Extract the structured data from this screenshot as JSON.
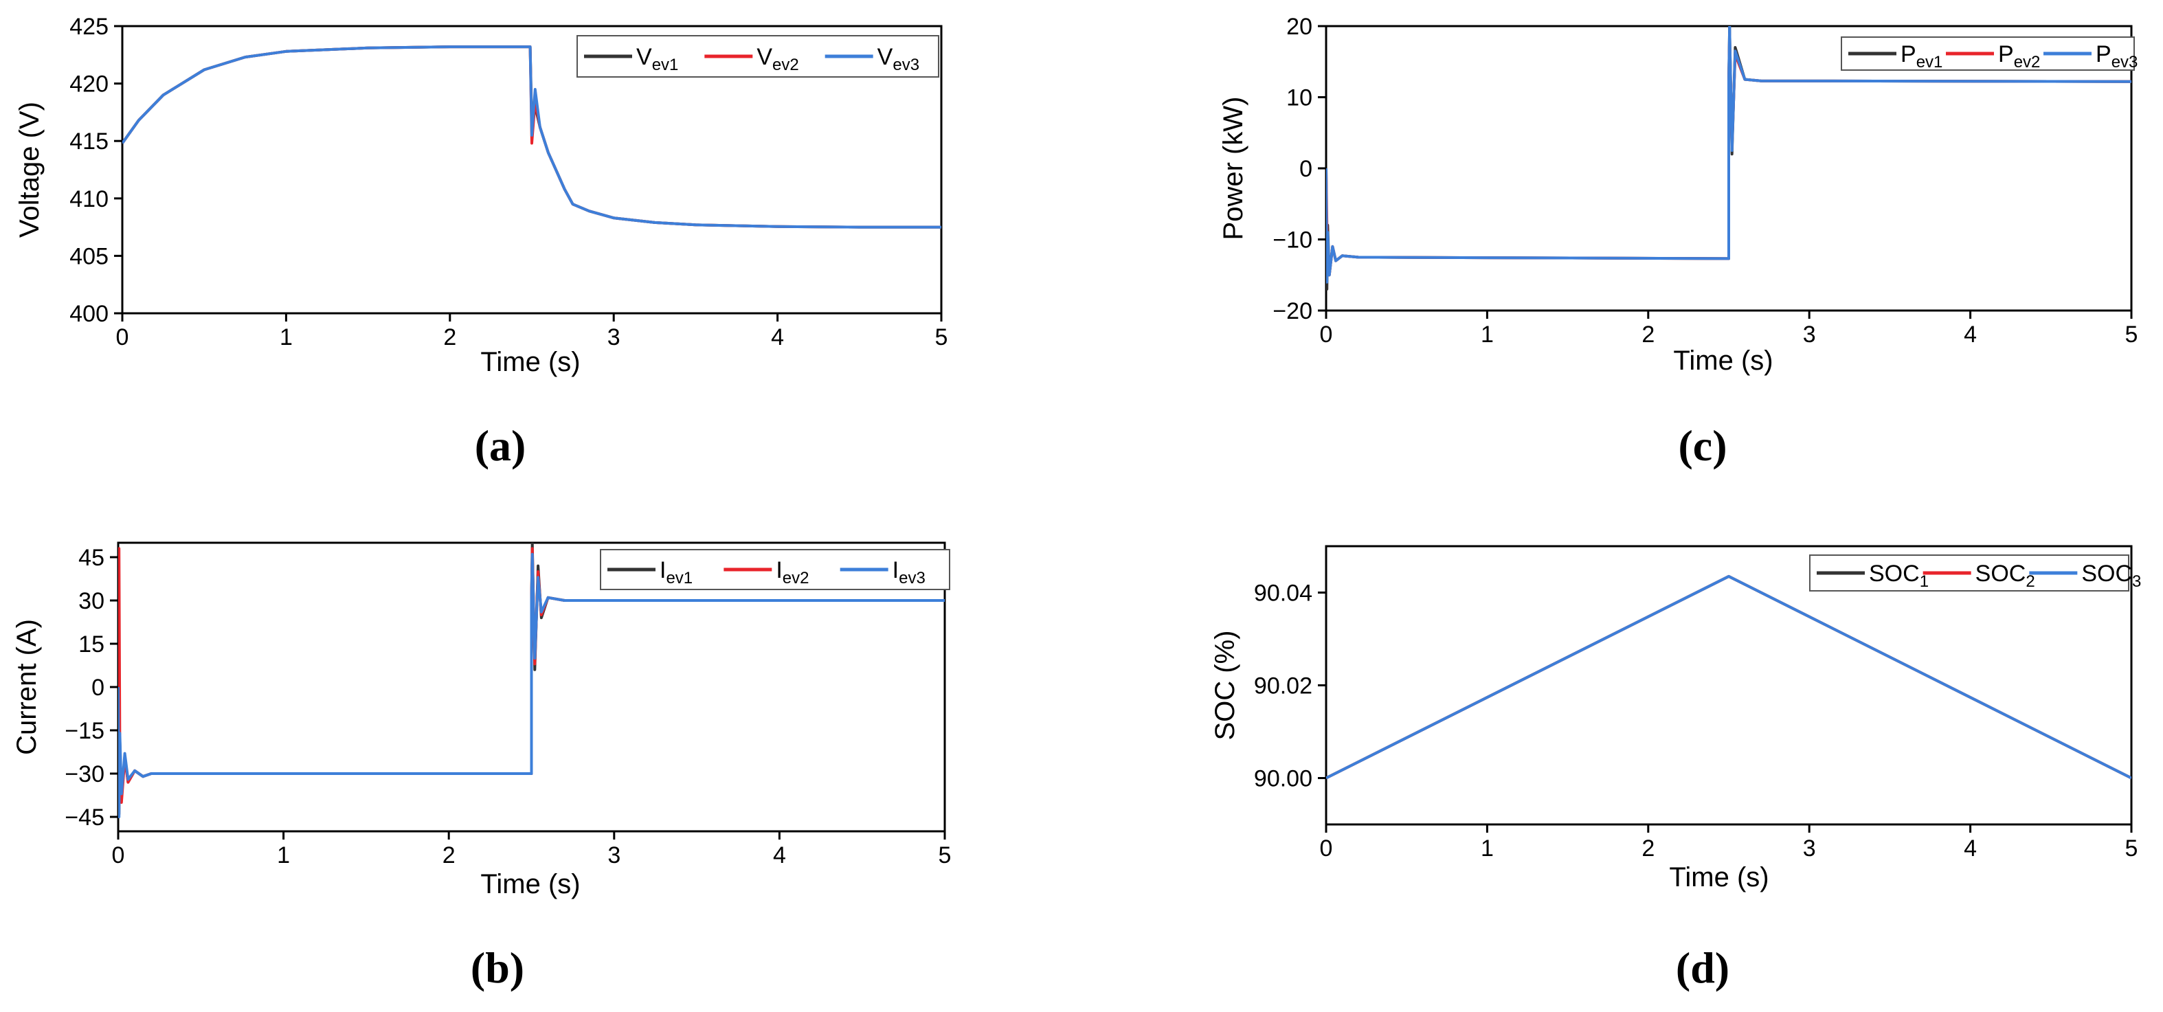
{
  "figure": {
    "title": ""
  },
  "chart_data": [
    {
      "id": "a",
      "panel_label": "(a)",
      "type": "line",
      "xlabel": "Time (s)",
      "ylabel": "Voltage (V)",
      "xlim": [
        0,
        5
      ],
      "ylim": [
        400,
        425
      ],
      "x_ticks": [
        0,
        1,
        2,
        3,
        4,
        5
      ],
      "y_ticks": [
        400,
        405,
        410,
        415,
        420,
        425
      ],
      "legend_position": "top-right",
      "series": [
        {
          "name": "V",
          "sub": "ev1",
          "color": "#333333",
          "x": [
            0,
            0.1,
            0.25,
            0.5,
            0.75,
            1.0,
            1.5,
            2.0,
            2.49,
            2.5,
            2.52,
            2.55,
            2.6,
            2.7,
            2.75,
            2.85,
            3.0,
            3.25,
            3.5,
            4.0,
            4.5,
            5.0
          ],
          "y": [
            414.8,
            416.8,
            419.0,
            421.2,
            422.3,
            422.8,
            423.1,
            423.2,
            423.2,
            416.5,
            418.0,
            416.2,
            414.0,
            410.8,
            409.5,
            408.9,
            408.3,
            407.9,
            407.7,
            407.55,
            407.5,
            407.5
          ]
        },
        {
          "name": "V",
          "sub": "ev2",
          "color": "#e8242b",
          "x": [
            0,
            0.1,
            0.25,
            0.5,
            0.75,
            1.0,
            1.5,
            2.0,
            2.49,
            2.5,
            2.52,
            2.55,
            2.6,
            2.7,
            2.75,
            2.85,
            3.0,
            3.25,
            3.5,
            4.0,
            4.5,
            5.0
          ],
          "y": [
            414.8,
            416.8,
            419.0,
            421.2,
            422.3,
            422.8,
            423.1,
            423.2,
            423.2,
            414.8,
            418.5,
            416.2,
            414.0,
            410.8,
            409.5,
            408.9,
            408.3,
            407.9,
            407.7,
            407.55,
            407.5,
            407.5
          ]
        },
        {
          "name": "V",
          "sub": "ev3",
          "color": "#3d7fd9",
          "x": [
            0,
            0.1,
            0.25,
            0.5,
            0.75,
            1.0,
            1.5,
            2.0,
            2.49,
            2.5,
            2.52,
            2.55,
            2.6,
            2.7,
            2.75,
            2.85,
            3.0,
            3.25,
            3.5,
            4.0,
            4.5,
            5.0
          ],
          "y": [
            414.8,
            416.8,
            419.0,
            421.2,
            422.3,
            422.8,
            423.1,
            423.2,
            423.2,
            415.5,
            419.5,
            416.2,
            414.0,
            410.8,
            409.5,
            408.9,
            408.3,
            407.9,
            407.7,
            407.55,
            407.5,
            407.5
          ]
        }
      ]
    },
    {
      "id": "b",
      "panel_label": "(b)",
      "type": "line",
      "xlabel": "Time (s)",
      "ylabel": "Current (A)",
      "xlim": [
        0,
        5
      ],
      "ylim": [
        -50,
        50
      ],
      "x_ticks": [
        0,
        1,
        2,
        3,
        4,
        5
      ],
      "y_ticks": [
        -45,
        -30,
        -15,
        0,
        15,
        30,
        45
      ],
      "legend_position": "top-right",
      "series": [
        {
          "name": "I",
          "sub": "ev1",
          "color": "#333333",
          "x": [
            0,
            0.005,
            0.01,
            0.02,
            0.04,
            0.06,
            0.1,
            0.15,
            0.2,
            2.5,
            2.5,
            2.505,
            2.52,
            2.54,
            2.56,
            2.6,
            2.7,
            5.0
          ],
          "y": [
            0,
            -44,
            -18,
            -38,
            -24,
            -33,
            -29,
            -31,
            -30,
            -30,
            30,
            50,
            6,
            42,
            24,
            31,
            30,
            30
          ]
        },
        {
          "name": "I",
          "sub": "ev2",
          "color": "#e8242b",
          "x": [
            0,
            0.005,
            0.01,
            0.02,
            0.04,
            0.06,
            0.1,
            0.15,
            0.2,
            2.5,
            2.5,
            2.505,
            2.52,
            2.54,
            2.56,
            2.6,
            2.7,
            5.0
          ],
          "y": [
            0,
            48,
            -20,
            -40,
            -25,
            -33,
            -29,
            -31,
            -30,
            -30,
            30,
            48,
            8,
            40,
            25,
            31,
            30,
            30
          ]
        },
        {
          "name": "I",
          "sub": "ev3",
          "color": "#3d7fd9",
          "x": [
            0,
            0.005,
            0.01,
            0.02,
            0.04,
            0.06,
            0.1,
            0.15,
            0.2,
            2.5,
            2.5,
            2.505,
            2.52,
            2.54,
            2.56,
            2.6,
            2.7,
            5.0
          ],
          "y": [
            0,
            -45,
            -16,
            -37,
            -23,
            -32,
            -29,
            -31,
            -30,
            -30,
            30,
            46,
            10,
            38,
            26,
            31,
            30,
            30
          ]
        }
      ]
    },
    {
      "id": "c",
      "panel_label": "(c)",
      "type": "line",
      "xlabel": "Time (s)",
      "ylabel": "Power (kW)",
      "xlim": [
        0,
        5
      ],
      "ylim": [
        -20,
        20
      ],
      "x_ticks": [
        0,
        1,
        2,
        3,
        4,
        5
      ],
      "y_ticks": [
        -20,
        -10,
        0,
        10,
        20
      ],
      "legend_position": "top-right",
      "series": [
        {
          "name": "P",
          "sub": "ev1",
          "color": "#333333",
          "x": [
            0,
            0.005,
            0.01,
            0.02,
            0.04,
            0.06,
            0.1,
            0.2,
            2.5,
            2.5,
            2.505,
            2.52,
            2.54,
            2.6,
            2.7,
            5.0
          ],
          "y": [
            0,
            -17,
            -8,
            -15,
            -11,
            -13,
            -12.3,
            -12.5,
            -12.7,
            12.2,
            20,
            2,
            17,
            12.5,
            12.3,
            12.2
          ]
        },
        {
          "name": "P",
          "sub": "ev2",
          "color": "#e8242b",
          "x": [
            0,
            0.005,
            0.01,
            0.02,
            0.04,
            0.06,
            0.1,
            0.2,
            2.5,
            2.5,
            2.505,
            2.52,
            2.54,
            2.6,
            2.7,
            5.0
          ],
          "y": [
            0,
            -8,
            -14,
            -15,
            -11,
            -13,
            -12.3,
            -12.5,
            -12.7,
            12.2,
            19,
            3,
            16,
            12.5,
            12.3,
            12.2
          ]
        },
        {
          "name": "P",
          "sub": "ev3",
          "color": "#3d7fd9",
          "x": [
            0,
            0.005,
            0.01,
            0.02,
            0.04,
            0.06,
            0.1,
            0.2,
            2.5,
            2.5,
            2.505,
            2.52,
            2.54,
            2.6,
            2.7,
            5.0
          ],
          "y": [
            0,
            -16,
            -9,
            -15,
            -11,
            -13,
            -12.3,
            -12.5,
            -12.7,
            12.2,
            20,
            2.5,
            16.5,
            12.5,
            12.3,
            12.2
          ]
        }
      ]
    },
    {
      "id": "d",
      "panel_label": "(d)",
      "type": "line",
      "xlabel": "Time (s)",
      "ylabel": "SOC (%)",
      "xlim": [
        0,
        5
      ],
      "ylim": [
        89.99,
        90.05
      ],
      "x_ticks": [
        0,
        1,
        2,
        3,
        4,
        5
      ],
      "y_ticks": [
        "90.00",
        "90.02",
        "90.04"
      ],
      "legend_position": "top-right",
      "series": [
        {
          "name": "SOC",
          "sub": "1",
          "color": "#333333",
          "x": [
            0,
            2.5,
            5.0
          ],
          "y": [
            90.0,
            90.0435,
            90.0
          ]
        },
        {
          "name": "SOC",
          "sub": "2",
          "color": "#e8242b",
          "x": [
            0,
            2.5,
            5.0
          ],
          "y": [
            90.0,
            90.0435,
            90.0
          ]
        },
        {
          "name": "SOC",
          "sub": "3",
          "color": "#3d7fd9",
          "x": [
            0,
            2.5,
            5.0
          ],
          "y": [
            90.0,
            90.0435,
            90.0
          ]
        }
      ]
    }
  ]
}
